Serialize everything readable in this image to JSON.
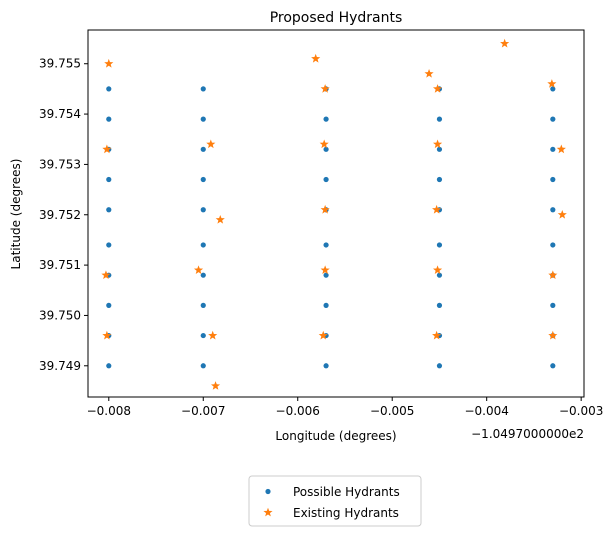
{
  "chart_data": {
    "type": "scatter",
    "title": "Proposed Hydrants",
    "xlabel": "Longitude (degrees)",
    "ylabel": "Latitude (degrees)",
    "x_offset_label": "−1.0497000000e2",
    "xlim": [
      -0.00822,
      -0.00297
    ],
    "ylim": [
      39.74838,
      39.75567
    ],
    "x_ticks": [
      -0.008,
      -0.007,
      -0.006,
      -0.005,
      -0.004,
      -0.003
    ],
    "x_tick_labels": [
      "−0.008",
      "−0.007",
      "−0.006",
      "−0.005",
      "−0.004",
      "−0.003"
    ],
    "y_ticks": [
      39.749,
      39.75,
      39.751,
      39.752,
      39.753,
      39.754,
      39.755
    ],
    "y_tick_labels": [
      "39.749",
      "39.750",
      "39.751",
      "39.752",
      "39.753",
      "39.754",
      "39.755"
    ],
    "grid": false,
    "legend_position": "below",
    "series": [
      {
        "name": "Possible Hydrants",
        "marker": "circle",
        "color": "#1f77b4",
        "columns_x": [
          -0.008,
          -0.007,
          -0.0057,
          -0.0045,
          -0.0033
        ],
        "rows_y": [
          39.749,
          39.7496,
          39.7502,
          39.7508,
          39.7514,
          39.7521,
          39.7527,
          39.7533,
          39.7539,
          39.7545
        ]
      },
      {
        "name": "Existing Hydrants",
        "marker": "star",
        "color": "#ff7f0e",
        "points": [
          [
            -0.008,
            39.755
          ],
          [
            -0.00802,
            39.7533
          ],
          [
            -0.00803,
            39.7508
          ],
          [
            -0.00802,
            39.7496
          ],
          [
            -0.00692,
            39.7534
          ],
          [
            -0.00682,
            39.7519
          ],
          [
            -0.00705,
            39.7509
          ],
          [
            -0.0069,
            39.7496
          ],
          [
            -0.00687,
            39.7486
          ],
          [
            -0.00581,
            39.7551
          ],
          [
            -0.00571,
            39.7545
          ],
          [
            -0.00572,
            39.7534
          ],
          [
            -0.00571,
            39.7521
          ],
          [
            -0.00571,
            39.7509
          ],
          [
            -0.00573,
            39.7496
          ],
          [
            -0.00461,
            39.7548
          ],
          [
            -0.00452,
            39.7545
          ],
          [
            -0.00452,
            39.7534
          ],
          [
            -0.00453,
            39.7521
          ],
          [
            -0.00452,
            39.7509
          ],
          [
            -0.00453,
            39.7496
          ],
          [
            -0.00381,
            39.7554
          ],
          [
            -0.00331,
            39.7546
          ],
          [
            -0.00321,
            39.7533
          ],
          [
            -0.0032,
            39.752
          ],
          [
            -0.0033,
            39.7508
          ],
          [
            -0.0033,
            39.7496
          ]
        ]
      }
    ]
  }
}
